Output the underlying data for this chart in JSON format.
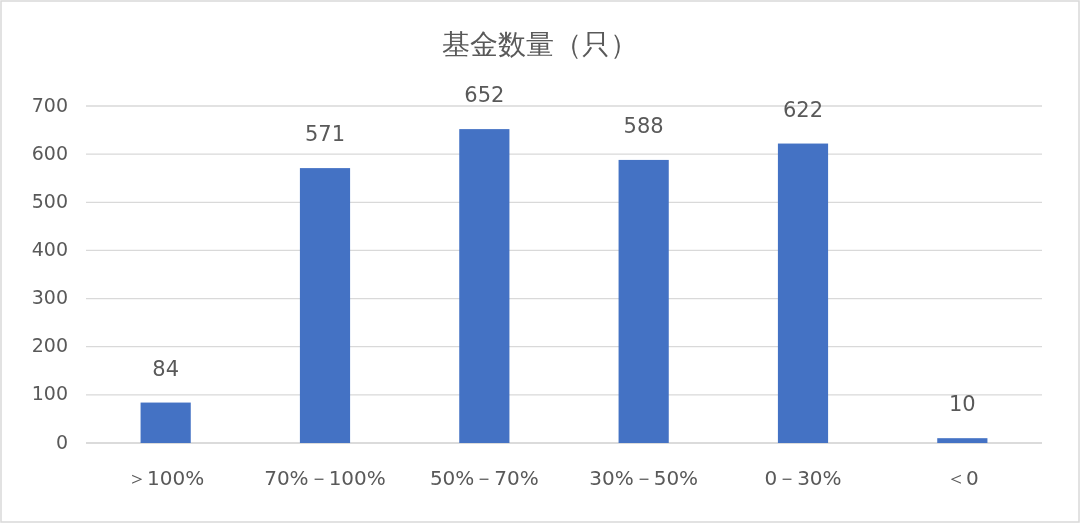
{
  "chart_data": {
    "type": "bar",
    "title": "基金数量（只）",
    "categories": [
      "＞100%",
      "70%－100%",
      "50%－70%",
      "30%－50%",
      "0－30%",
      "＜0"
    ],
    "values": [
      84,
      571,
      652,
      588,
      622,
      10
    ],
    "color": "#4472c4",
    "ylim": [
      0,
      700
    ],
    "yticks": [
      0,
      100,
      200,
      300,
      400,
      500,
      600,
      700
    ],
    "grid": "y",
    "data_labels": true
  }
}
